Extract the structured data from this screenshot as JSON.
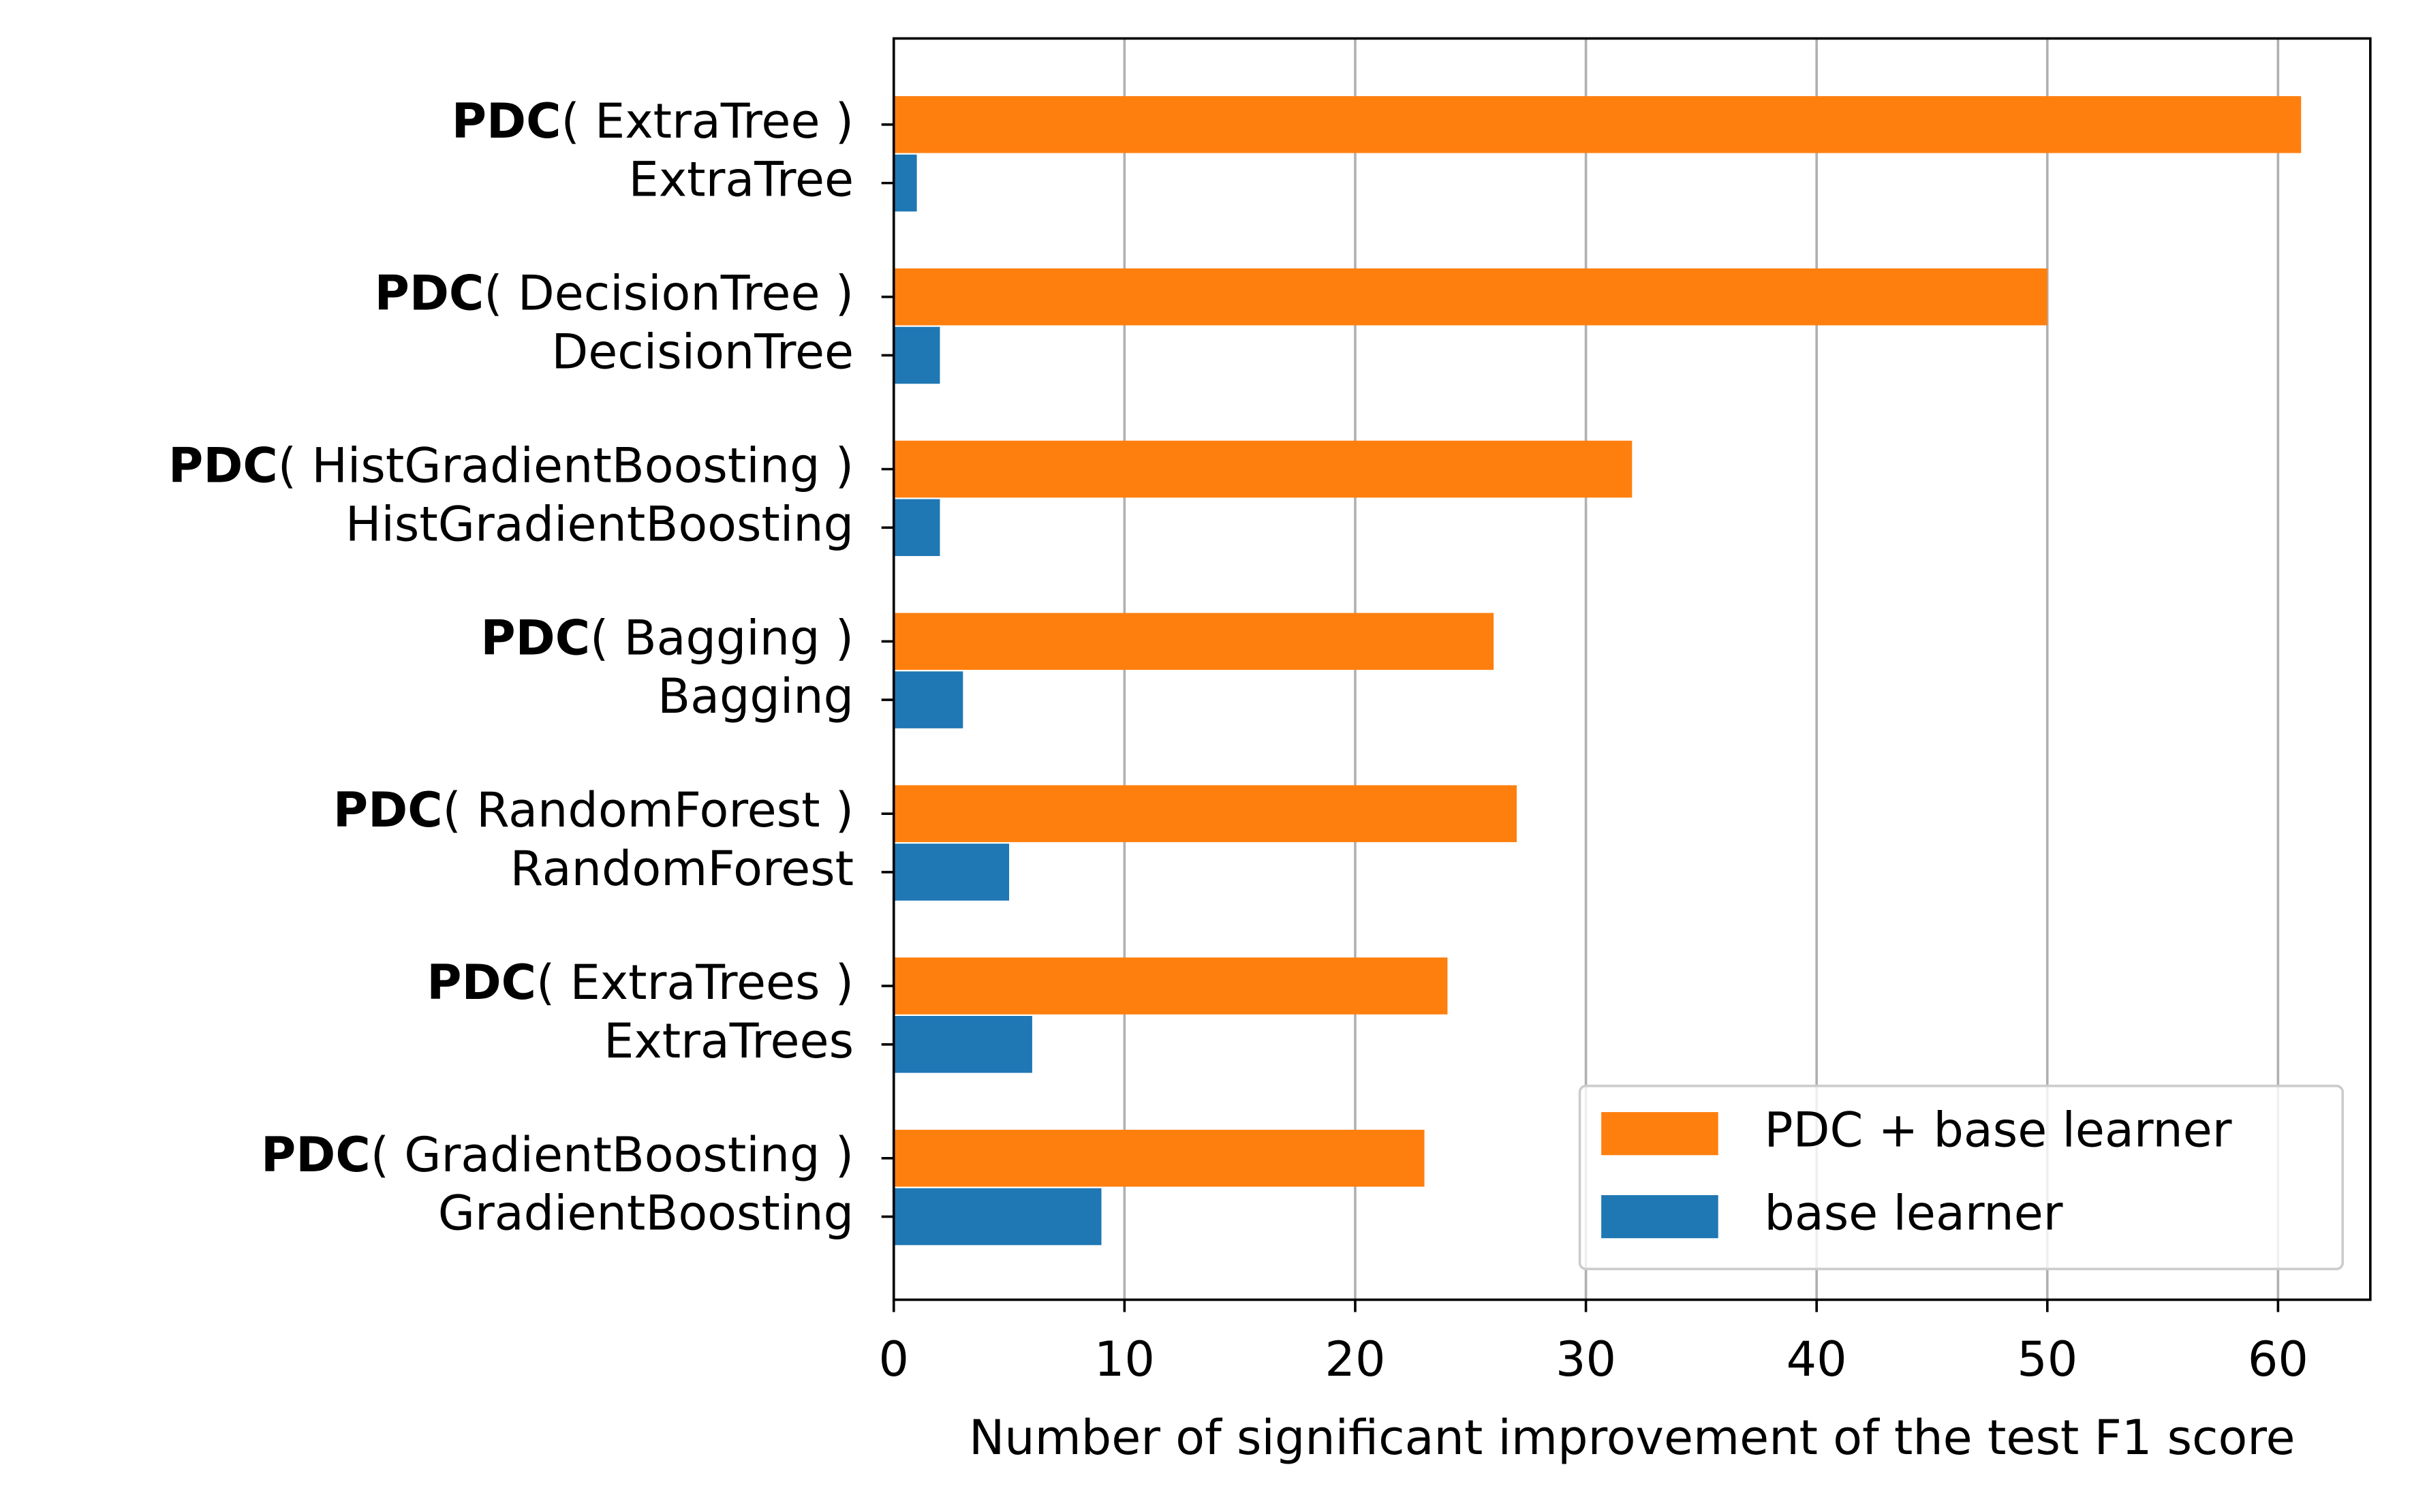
{
  "chart_data": {
    "type": "barh",
    "x_label": "Number of significant improvement of the test F1 score",
    "categories": [
      "ExtraTree",
      "DecisionTree",
      "HistGradientBoosting",
      "Bagging",
      "RandomForest",
      "ExtraTrees",
      "GradientBoosting"
    ],
    "pdc_labels": [
      [
        "PDC",
        "( ExtraTree )"
      ],
      [
        "PDC",
        "( DecisionTree )"
      ],
      [
        "PDC",
        "( HistGradientBoosting )"
      ],
      [
        "PDC",
        "( Bagging )"
      ],
      [
        "PDC",
        "( RandomForest )"
      ],
      [
        "PDC",
        "( ExtraTrees )"
      ],
      [
        "PDC",
        "( GradientBoosting )"
      ]
    ],
    "series": [
      {
        "name": "PDC + base learner",
        "color": "#ff7f0e",
        "values": [
          61,
          50,
          32,
          26,
          27,
          24,
          23
        ]
      },
      {
        "name": "base learner",
        "color": "#1f77b4",
        "values": [
          1,
          2,
          2,
          3,
          5,
          6,
          9
        ]
      }
    ],
    "xlim": [
      0,
      64
    ],
    "xticks": [
      0,
      10,
      20,
      30,
      40,
      50,
      60
    ],
    "grid": true,
    "legend": "lower right"
  }
}
